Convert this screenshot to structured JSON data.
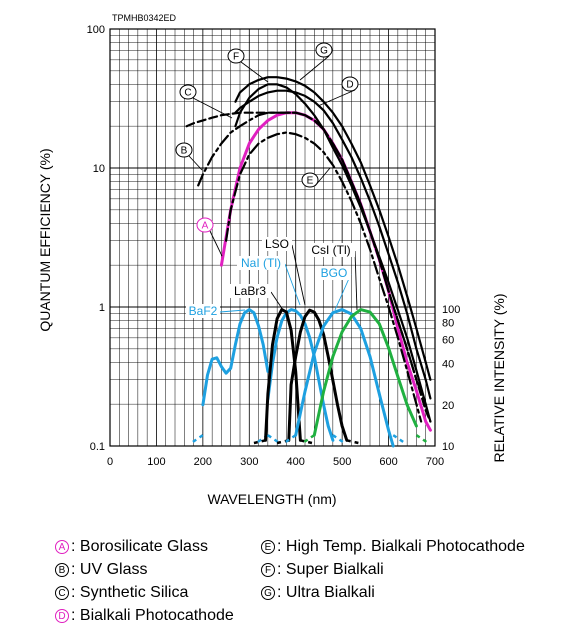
{
  "chart_data": {
    "type": "line",
    "code": "TPMHB0342ED",
    "xlabel": "WAVELENGTH (nm)",
    "ylabel": "QUANTUM EFFICIENCY (%)",
    "y2label": "RELATIVE INTENSITY (%)",
    "xlim": [
      0,
      700
    ],
    "ylim": [
      0.1,
      100
    ],
    "yscale": "log",
    "grid": true,
    "x_ticks": [
      "0",
      "100",
      "200",
      "300",
      "400",
      "500",
      "600",
      "700"
    ],
    "y_ticks": [
      "0.1",
      "1",
      "10",
      "100"
    ],
    "y2_ticks": [
      "10",
      "20",
      "40",
      "60",
      "80",
      "100"
    ],
    "colors": {
      "black": "#000000",
      "magenta": "#e020c0",
      "cyan": "#1ea0e0",
      "green": "#20b040",
      "grid": "#000000"
    },
    "series": [
      {
        "name": "A",
        "color": "#e020c0",
        "dash": "solid",
        "x": [
          240,
          260,
          280,
          300,
          320,
          340,
          360,
          380,
          400,
          420,
          440,
          460,
          480,
          500,
          520,
          540,
          560,
          580,
          600,
          620,
          640,
          660,
          680,
          690
        ],
        "y": [
          2.0,
          5.0,
          10,
          15,
          19,
          22,
          24,
          25,
          25,
          24,
          22,
          19,
          15,
          11.5,
          8.0,
          5.5,
          3.5,
          2.2,
          1.3,
          0.7,
          0.4,
          0.25,
          0.15,
          0.13
        ]
      },
      {
        "name": "B",
        "color": "#000000",
        "dash": "dashdot",
        "x": [
          190,
          200,
          220,
          240,
          260,
          280,
          300,
          320,
          340,
          360,
          380,
          400,
          420,
          440,
          460,
          480,
          500,
          520,
          540,
          560,
          580,
          600,
          620,
          640,
          660,
          680
        ],
        "y": [
          7.5,
          9.0,
          12,
          15,
          18,
          20,
          22,
          24,
          25,
          25,
          25,
          25,
          24,
          22,
          19,
          15,
          11.5,
          8.0,
          5.5,
          3.5,
          2.2,
          1.3,
          0.8,
          0.5,
          0.3,
          0.2
        ]
      },
      {
        "name": "C",
        "color": "#000000",
        "dash": "dashed",
        "x": [
          165,
          180,
          200,
          220,
          240,
          260,
          280,
          300,
          320,
          340,
          360,
          380,
          400,
          420,
          440,
          460,
          480,
          500,
          520,
          540,
          560,
          580,
          600,
          620,
          640,
          660,
          680,
          690
        ],
        "y": [
          20,
          21,
          22,
          23,
          24,
          24.5,
          25,
          25,
          25,
          25,
          25,
          25,
          25,
          24,
          22,
          19,
          15,
          11.5,
          8.0,
          5.5,
          3.5,
          2.2,
          1.3,
          0.8,
          0.5,
          0.3,
          0.18,
          0.15
        ]
      },
      {
        "name": "D",
        "color": "#000000",
        "dash": "solid",
        "x": [
          270,
          280,
          300,
          320,
          340,
          360,
          380,
          400,
          420,
          440,
          460,
          480,
          500,
          520,
          540,
          560,
          580,
          600,
          620,
          640,
          660,
          680,
          690
        ],
        "y": [
          25,
          27,
          30,
          33,
          35,
          36,
          36,
          35,
          33,
          30,
          26,
          21,
          16,
          12,
          8.5,
          5.8,
          3.8,
          2.4,
          1.5,
          0.9,
          0.5,
          0.3,
          0.22
        ]
      },
      {
        "name": "E",
        "color": "#000000",
        "dash": "dashdot",
        "x": [
          250,
          260,
          280,
          300,
          320,
          340,
          360,
          380,
          400,
          420,
          440,
          460,
          480,
          500,
          520,
          540,
          560,
          580,
          600,
          620,
          640,
          660,
          670
        ],
        "y": [
          3.0,
          5.0,
          9.0,
          12.5,
          15,
          16.5,
          17.5,
          18,
          17.5,
          16.5,
          15,
          13,
          10.5,
          8.0,
          5.8,
          4.0,
          2.6,
          1.6,
          1.0,
          0.6,
          0.35,
          0.2,
          0.15
        ]
      },
      {
        "name": "F",
        "color": "#000000",
        "dash": "solid",
        "x": [
          270,
          280,
          300,
          320,
          340,
          360,
          380,
          400,
          420,
          440,
          460,
          480,
          500,
          520,
          540,
          560,
          580,
          600,
          620,
          640,
          660,
          680,
          690
        ],
        "y": [
          20,
          25,
          32,
          37,
          40,
          40,
          38,
          34,
          29,
          24,
          19,
          14,
          10.5,
          7.5,
          5.2,
          3.5,
          2.3,
          1.5,
          0.95,
          0.6,
          0.35,
          0.2,
          0.15
        ]
      },
      {
        "name": "G",
        "color": "#000000",
        "dash": "solid",
        "x": [
          270,
          280,
          300,
          320,
          340,
          360,
          380,
          400,
          420,
          440,
          460,
          480,
          500,
          520,
          540,
          560,
          580,
          600,
          620,
          640,
          660,
          680,
          690
        ],
        "y": [
          30,
          35,
          40,
          43,
          45,
          45,
          44,
          42,
          39,
          35,
          30,
          25,
          20,
          15,
          11,
          7.5,
          5.0,
          3.2,
          2.0,
          1.2,
          0.7,
          0.4,
          0.3
        ]
      },
      {
        "name": "BaF2",
        "color": "#1ea0e0",
        "dash": "solid",
        "x": [
          200,
          210,
          220,
          230,
          240,
          250,
          260,
          270,
          280,
          290,
          300,
          310,
          320,
          330,
          340
        ],
        "y": [
          20,
          33,
          43,
          44,
          38,
          34,
          37,
          55,
          78,
          94,
          99,
          94,
          75,
          55,
          35
        ]
      },
      {
        "name": "NaI (Tl)",
        "color": "#1ea0e0",
        "dash": "solid",
        "x": [
          340,
          350,
          360,
          370,
          380,
          390,
          400,
          410,
          420,
          430,
          440,
          450,
          460,
          470,
          480
        ],
        "y": [
          22,
          40,
          62,
          82,
          94,
          99,
          97,
          90,
          78,
          62,
          45,
          30,
          20,
          14,
          11
        ]
      },
      {
        "name": "LaBr3",
        "color": "#000000",
        "dash": "solid",
        "x": [
          335,
          340,
          350,
          360,
          370,
          380,
          390,
          400,
          410
        ],
        "y": [
          11,
          24,
          55,
          85,
          99,
          95,
          70,
          35,
          11
        ]
      },
      {
        "name": "LSO",
        "color": "#000000",
        "dash": "solid",
        "x": [
          385,
          390,
          400,
          410,
          420,
          430,
          440,
          450,
          460,
          470,
          480,
          490,
          500,
          510
        ],
        "y": [
          11,
          28,
          45,
          68,
          88,
          98,
          95,
          83,
          65,
          45,
          30,
          20,
          14,
          11
        ]
      },
      {
        "name": "BGO",
        "color": "#1ea0e0",
        "dash": "solid",
        "x": [
          400,
          420,
          440,
          460,
          480,
          500,
          520,
          540,
          560,
          580,
          600,
          610
        ],
        "y": [
          12,
          25,
          48,
          75,
          94,
          99,
          92,
          72,
          45,
          24,
          13,
          10
        ]
      },
      {
        "name": "CsI (Tl)",
        "color": "#20b040",
        "dash": "solid",
        "x": [
          440,
          460,
          480,
          500,
          520,
          540,
          560,
          580,
          600,
          620,
          640,
          660
        ],
        "y": [
          12,
          25,
          45,
          68,
          88,
          99,
          95,
          78,
          52,
          32,
          20,
          14
        ]
      }
    ],
    "curve_labels": {
      "A": "A",
      "B": "B",
      "C": "C",
      "D": "D",
      "E": "E",
      "F": "F",
      "G": "G"
    },
    "scint_labels": {
      "BaF2": "BaF2",
      "NaI": "NaI (Tl)",
      "LaBr3": "LaBr3",
      "LSO": "LSO",
      "BGO": "BGO",
      "CsI": "CsI (Tl)"
    }
  },
  "legend": [
    {
      "letter": "A",
      "text": ": Borosilicate Glass"
    },
    {
      "letter": "B",
      "text": ": UV Glass"
    },
    {
      "letter": "C",
      "text": ": Synthetic Silica"
    },
    {
      "letter": "D",
      "text": ": Bialkali Photocathode"
    },
    {
      "letter": "E",
      "text": ": High Temp. Bialkali Photocathode"
    },
    {
      "letter": "F",
      "text": ": Super Bialkali"
    },
    {
      "letter": "G",
      "text": ": Ultra Bialkali"
    }
  ]
}
